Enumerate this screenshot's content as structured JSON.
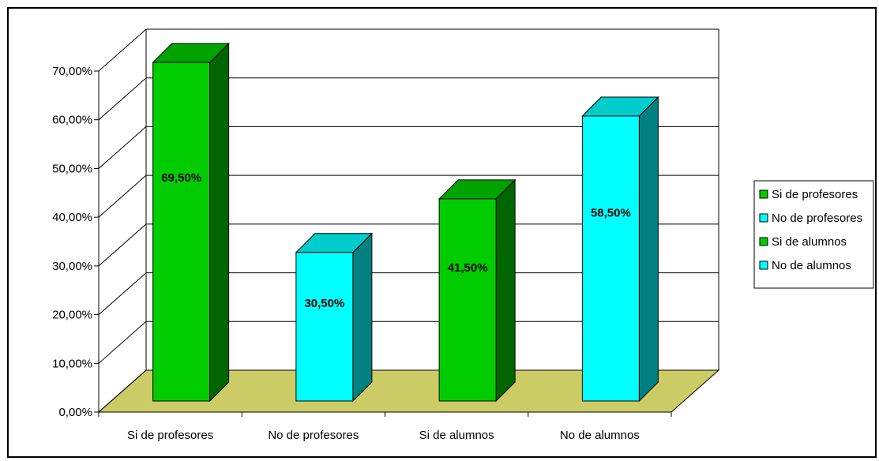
{
  "chart_data": {
    "type": "bar",
    "title": "",
    "xlabel": "",
    "ylabel": "",
    "ylim": [
      0,
      70
    ],
    "yticks": [
      0,
      10,
      20,
      30,
      40,
      50,
      60,
      70
    ],
    "ytick_labels": [
      "0,00%",
      "10,00%",
      "20,00%",
      "30,00%",
      "40,00%",
      "50,00%",
      "60,00%",
      "70,00%"
    ],
    "categories": [
      "Si de profesores",
      "No de profesores",
      "Si de alumnos",
      "No de alumnos"
    ],
    "values": [
      69.5,
      30.5,
      41.5,
      58.5
    ],
    "data_labels": [
      "69,50%",
      "30,50%",
      "41,50%",
      "58,50%"
    ],
    "series_colors": [
      "#00CC00",
      "#00FFFF",
      "#00CC00",
      "#00FFFF"
    ],
    "floor_color": "#CCCC66",
    "grid": true,
    "three_d": true,
    "legend": {
      "placement": "right",
      "entries": [
        {
          "label": "Si de profesores",
          "color": "#00CC00"
        },
        {
          "label": "No de profesores",
          "color": "#00FFFF"
        },
        {
          "label": "Si de alumnos",
          "color": "#00CC00"
        },
        {
          "label": "No de alumnos",
          "color": "#00FFFF"
        }
      ]
    }
  }
}
